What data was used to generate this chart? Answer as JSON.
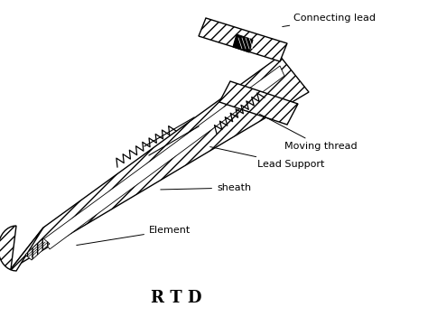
{
  "title": "R T D",
  "title_fontsize": 13,
  "title_fontweight": "bold",
  "labels": {
    "connecting_lead": "Connecting lead",
    "moving_thread": "Moving thread",
    "lead_support": "Lead Support",
    "sheath": "sheath",
    "element": "Element"
  },
  "bg_color": "#ffffff",
  "line_color": "#000000",
  "figsize": [
    4.74,
    3.71
  ],
  "dpi": 100
}
